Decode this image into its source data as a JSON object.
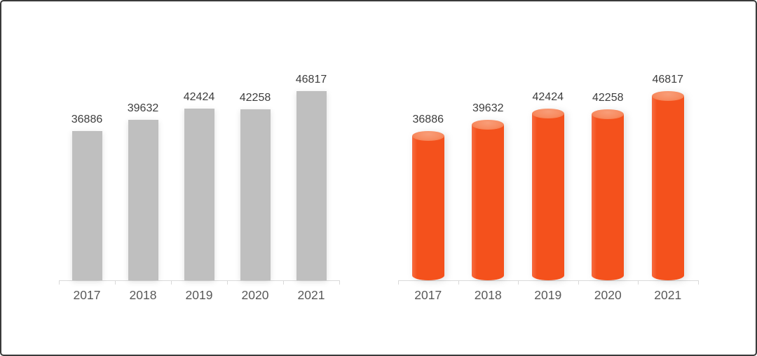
{
  "page": {
    "background_color": "#ffffff",
    "border_color": "#3a3a3a",
    "title": ""
  },
  "chart_data": [
    {
      "type": "bar",
      "variant": "flat",
      "title": "",
      "xlabel": "",
      "ylabel": "",
      "categories": [
        "2017",
        "2018",
        "2019",
        "2020",
        "2021"
      ],
      "values": [
        36886,
        39632,
        42424,
        42258,
        46817
      ],
      "value_labels": [
        "36886",
        "39632",
        "42424",
        "42258",
        "46817"
      ],
      "ylim": [
        0,
        46817
      ],
      "grid": false,
      "legend": "none",
      "bar_color": "#bfbfbf",
      "value_label_color": "#3d3d3d",
      "category_label_color": "#595959",
      "axis_color": "#d9d9d9"
    },
    {
      "type": "bar",
      "variant": "cylinder",
      "title": "",
      "xlabel": "",
      "ylabel": "",
      "categories": [
        "2017",
        "2018",
        "2019",
        "2020",
        "2021"
      ],
      "values": [
        36886,
        39632,
        42424,
        42258,
        46817
      ],
      "value_labels": [
        "36886",
        "39632",
        "42424",
        "42258",
        "46817"
      ],
      "ylim": [
        0,
        46817
      ],
      "grid": false,
      "legend": "none",
      "bar_color": "#f4511c",
      "bar_top_color": "#f78b60",
      "value_label_color": "#3d3d3d",
      "category_label_color": "#595959",
      "axis_color": "#d9d9d9"
    }
  ]
}
